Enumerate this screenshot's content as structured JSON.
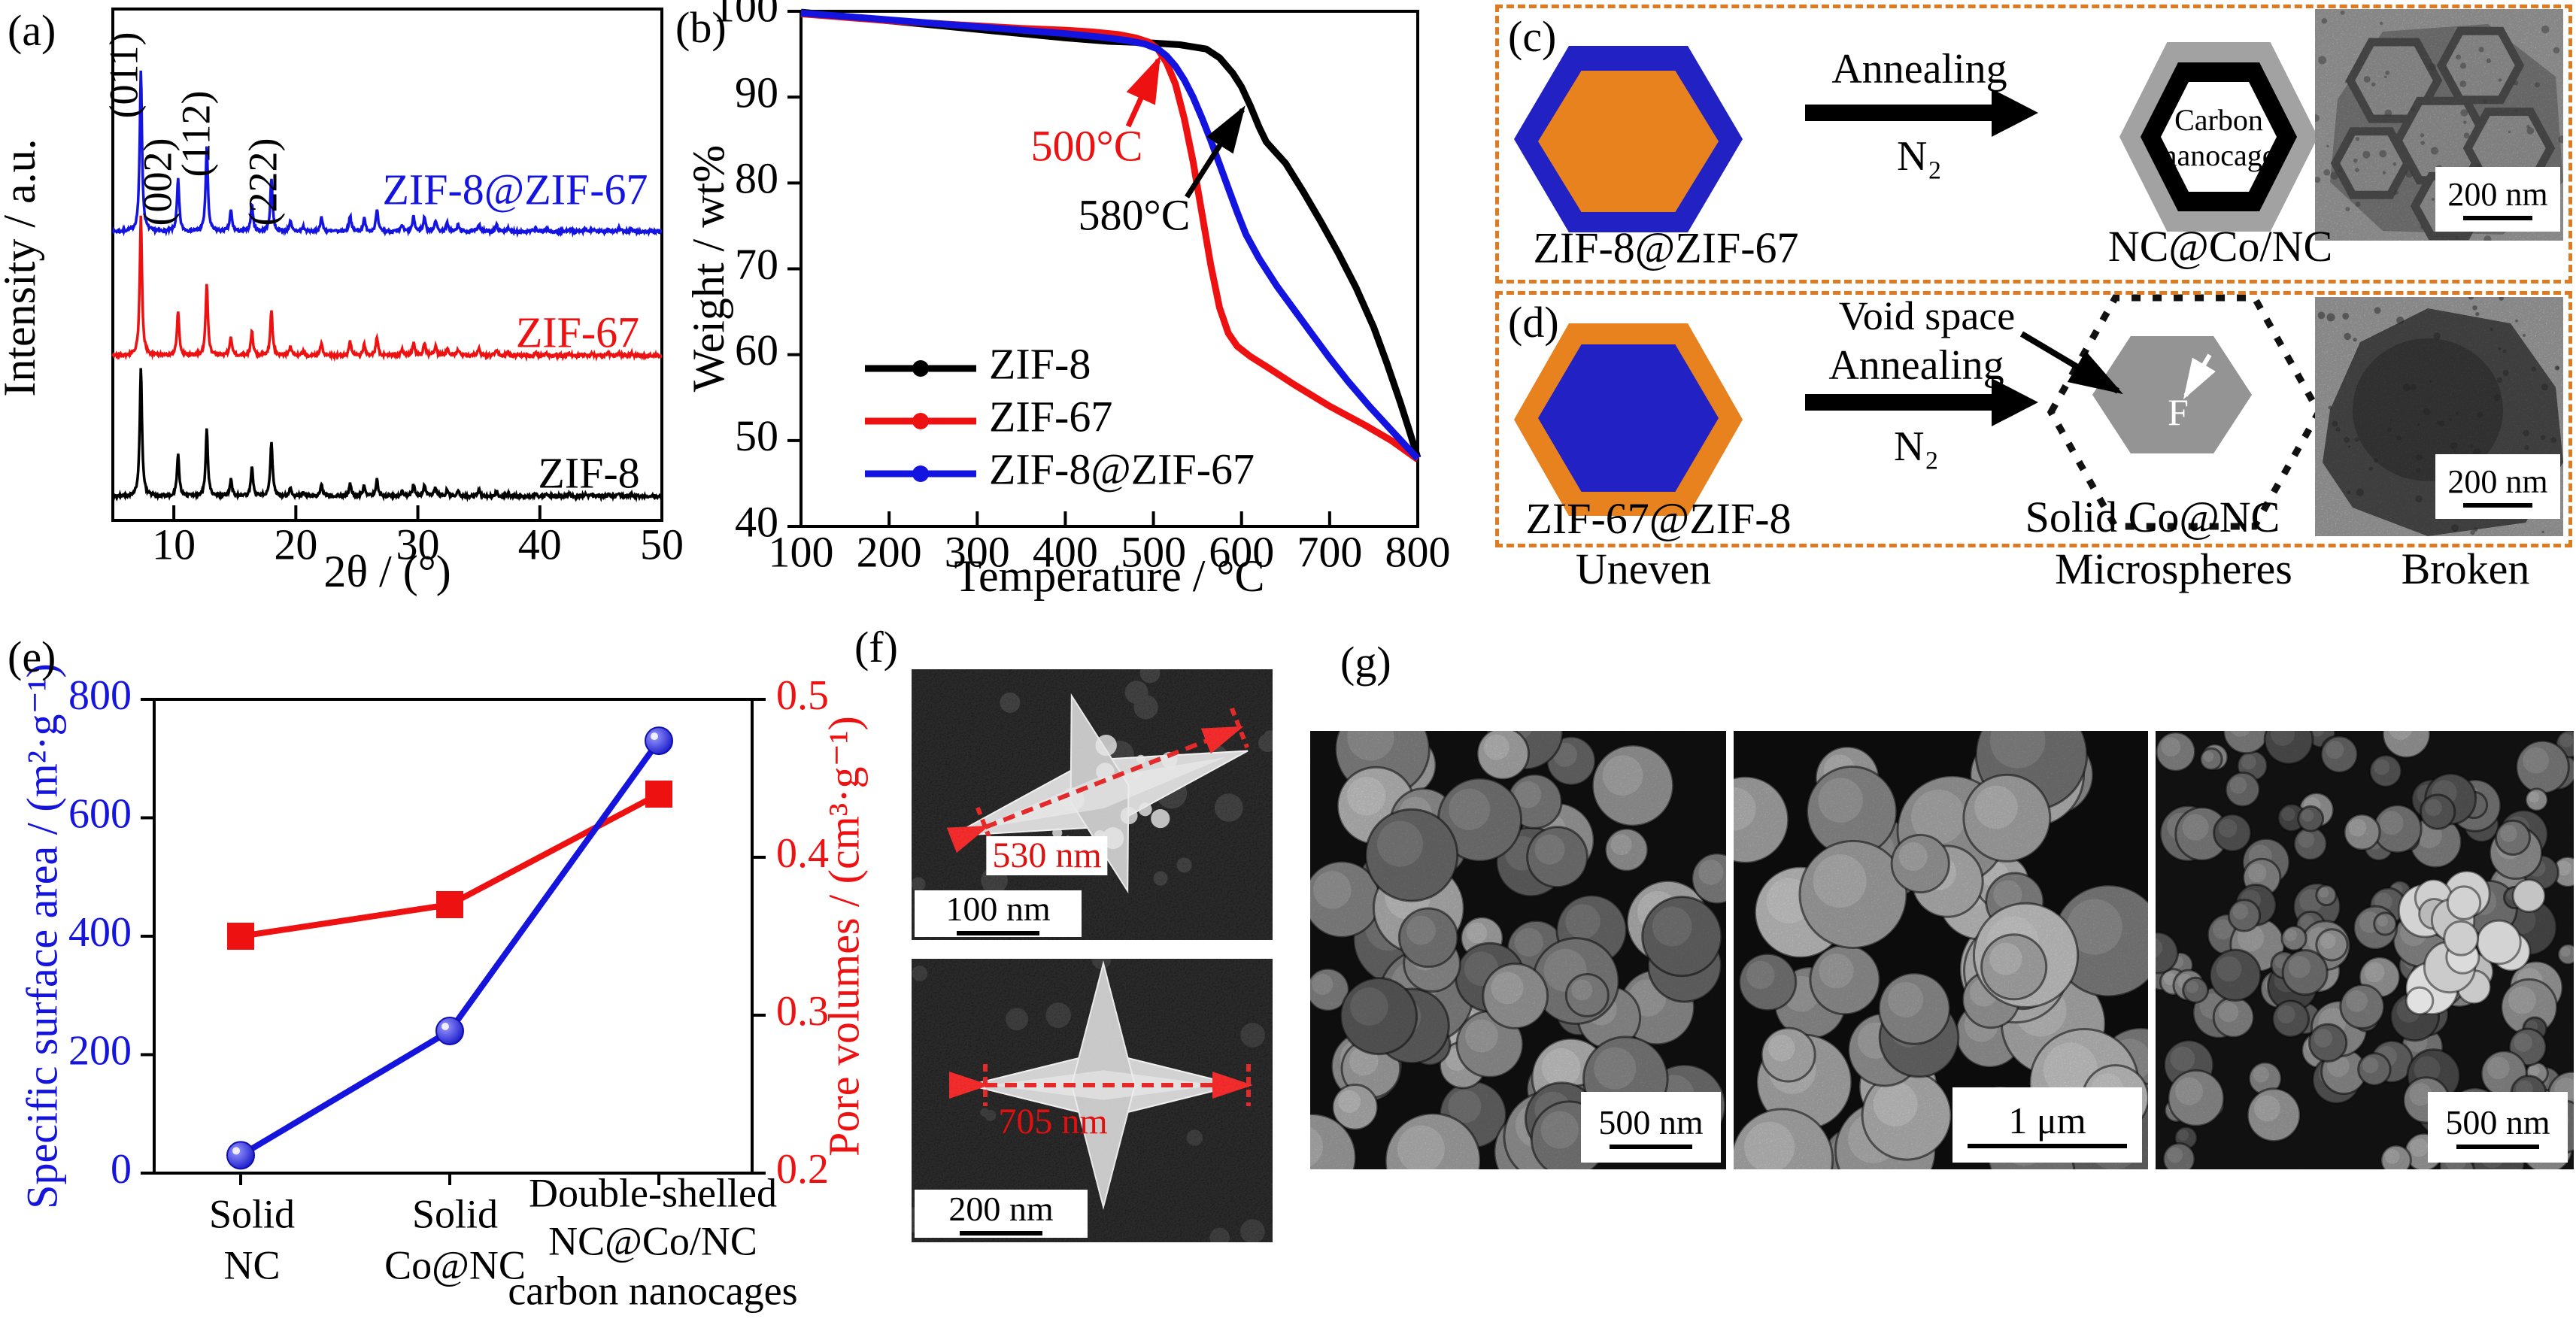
{
  "figure": {
    "background": "#ffffff"
  },
  "colors": {
    "blue": "#1414dc",
    "red": "#ee1111",
    "black": "#000000",
    "orange_fill": "#e8821e",
    "blue_fill": "#2121c4",
    "dash_border": "#dd7a22",
    "gray_shell": "#a2a2a2",
    "gray_core": "#949494"
  },
  "panels": {
    "a": {
      "label": "(a)",
      "peak_labels": [
        "(011)",
        "(002)",
        "(112)",
        "(222)"
      ]
    },
    "b": {
      "label": "(b)"
    },
    "c": {
      "label": "(c)",
      "reactant": "ZIF-8@ZIF-67",
      "process_top": "Annealing",
      "process_bottom": "N₂",
      "cage_line1": "Carbon",
      "cage_line2": "nanocage",
      "product": "NC@Co/NC",
      "scalebar": "200 nm"
    },
    "d": {
      "label": "(d)",
      "reactant": "ZIF-67@ZIF-8",
      "void_label": "Void space",
      "process_top": "Annealing",
      "process_bottom": "N₂",
      "core_letter": "F",
      "product": "Solid Co@NC",
      "scalebar": "200 nm"
    },
    "row_labels": {
      "uneven": "Uneven",
      "microspheres": "Microspheres",
      "broken": "Broken"
    },
    "e": {
      "label": "(e)"
    },
    "f": {
      "label": "(f)",
      "measure_top": "530 nm",
      "scalebar_top": "100 nm",
      "measure_bottom": "705 nm",
      "scalebar_bottom": "200 nm"
    },
    "g": {
      "label": "(g)",
      "scalebar_1": "500 nm",
      "scalebar_2": "1 μm",
      "scalebar_3": "500 nm"
    }
  },
  "chart_data": [
    {
      "id": "xrd",
      "type": "line",
      "xlabel": "2θ / (°)",
      "ylabel": "Intensity / a.u.",
      "xlim": [
        5,
        50
      ],
      "xticks": [
        10,
        20,
        30,
        40,
        50
      ],
      "grid": false,
      "legend_position": "inline-right",
      "peak_positions_2theta": [
        7.3,
        10.35,
        12.7,
        14.68,
        16.4,
        18.0,
        19.55,
        20.6,
        22.1,
        24.45,
        25.6,
        26.65,
        28.7,
        29.65,
        30.55,
        31.45,
        32.4,
        33.3,
        35.0,
        36.45,
        37.35,
        39.65,
        40.5,
        42.4,
        43.7,
        44.3,
        45.6,
        46.5,
        47.5
      ],
      "peak_rel_intensities": [
        1.0,
        0.32,
        0.52,
        0.13,
        0.17,
        0.33,
        0.06,
        0.03,
        0.09,
        0.1,
        0.08,
        0.13,
        0.04,
        0.09,
        0.09,
        0.07,
        0.05,
        0.04,
        0.05,
        0.04,
        0.02,
        0.02,
        0.015,
        0.02,
        0.015,
        0.015,
        0.015,
        0.02,
        0.015
      ],
      "peak_labels": [
        "(011)",
        "(002)",
        "(112)",
        "(222)"
      ],
      "series": [
        {
          "name": "ZIF-8@ZIF-67",
          "color": "#1414e0"
        },
        {
          "name": "ZIF-67",
          "color": "#ee1111"
        },
        {
          "name": "ZIF-8",
          "color": "#000000"
        }
      ]
    },
    {
      "id": "tga",
      "type": "line",
      "xlabel": "Temperature / °C",
      "ylabel": "Weight / wt%",
      "xlim": [
        100,
        800
      ],
      "ylim": [
        40,
        100
      ],
      "xticks": [
        100,
        200,
        300,
        400,
        500,
        600,
        700,
        800
      ],
      "yticks": [
        40,
        50,
        60,
        70,
        80,
        90,
        100
      ],
      "grid": false,
      "legend_position": "lower-left",
      "annotations": [
        {
          "text": "500°C",
          "color": "#ee1111"
        },
        {
          "text": "580°C",
          "color": "#000000"
        }
      ],
      "series": [
        {
          "name": "ZIF-8",
          "color": "#000000",
          "points": [
            [
              100,
              99.9
            ],
            [
              150,
              99.4
            ],
            [
              200,
              98.9
            ],
            [
              250,
              98.4
            ],
            [
              300,
              97.9
            ],
            [
              350,
              97.4
            ],
            [
              400,
              96.9
            ],
            [
              450,
              96.5
            ],
            [
              500,
              96.3
            ],
            [
              530,
              96.1
            ],
            [
              560,
              95.6
            ],
            [
              575,
              94.6
            ],
            [
              590,
              92.8
            ],
            [
              600,
              91.2
            ],
            [
              610,
              89.0
            ],
            [
              620,
              86.5
            ],
            [
              628,
              84.8
            ],
            [
              635,
              84.0
            ],
            [
              650,
              82.3
            ],
            [
              670,
              79.0
            ],
            [
              690,
              75.5
            ],
            [
              710,
              71.8
            ],
            [
              730,
              67.8
            ],
            [
              750,
              63.2
            ],
            [
              765,
              59.0
            ],
            [
              780,
              54.5
            ],
            [
              790,
              51.3
            ],
            [
              800,
              48.0
            ]
          ]
        },
        {
          "name": "ZIF-67",
          "color": "#ee1111",
          "points": [
            [
              100,
              99.7
            ],
            [
              150,
              99.3
            ],
            [
              200,
              98.9
            ],
            [
              250,
              98.6
            ],
            [
              300,
              98.3
            ],
            [
              350,
              98.0
            ],
            [
              400,
              97.8
            ],
            [
              430,
              97.6
            ],
            [
              460,
              97.3
            ],
            [
              480,
              96.9
            ],
            [
              495,
              96.4
            ],
            [
              505,
              95.6
            ],
            [
              515,
              94.0
            ],
            [
              525,
              91.5
            ],
            [
              535,
              87.5
            ],
            [
              545,
              82.5
            ],
            [
              555,
              76.5
            ],
            [
              565,
              70.5
            ],
            [
              575,
              65.5
            ],
            [
              585,
              62.5
            ],
            [
              595,
              61.0
            ],
            [
              610,
              59.8
            ],
            [
              630,
              58.5
            ],
            [
              660,
              56.5
            ],
            [
              700,
              54.0
            ],
            [
              740,
              51.8
            ],
            [
              770,
              50.0
            ],
            [
              800,
              47.8
            ]
          ]
        },
        {
          "name": "ZIF-8@ZIF-67",
          "color": "#1414e0",
          "points": [
            [
              100,
              99.8
            ],
            [
              150,
              99.4
            ],
            [
              200,
              99.0
            ],
            [
              250,
              98.6
            ],
            [
              300,
              98.2
            ],
            [
              350,
              97.8
            ],
            [
              400,
              97.4
            ],
            [
              440,
              97.0
            ],
            [
              470,
              96.6
            ],
            [
              490,
              96.2
            ],
            [
              505,
              95.6
            ],
            [
              515,
              94.8
            ],
            [
              525,
              93.6
            ],
            [
              535,
              92.0
            ],
            [
              545,
              90.0
            ],
            [
              555,
              87.6
            ],
            [
              565,
              85.0
            ],
            [
              575,
              82.2
            ],
            [
              585,
              79.4
            ],
            [
              595,
              76.6
            ],
            [
              605,
              74.0
            ],
            [
              620,
              71.2
            ],
            [
              640,
              68.0
            ],
            [
              660,
              65.2
            ],
            [
              680,
              62.4
            ],
            [
              700,
              59.6
            ],
            [
              720,
              57.0
            ],
            [
              745,
              54.0
            ],
            [
              770,
              51.2
            ],
            [
              790,
              49.0
            ],
            [
              800,
              47.9
            ]
          ]
        }
      ]
    },
    {
      "id": "surface-pore",
      "type": "line",
      "categories": [
        [
          "Solid",
          "NC"
        ],
        [
          "Solid",
          "Co@NC"
        ],
        [
          "Double-shelled",
          "NC@Co/NC",
          "carbon nanocages"
        ]
      ],
      "left_axis": {
        "label": "Specific surface area / (m²·g⁻¹)",
        "ticks": [
          0,
          200,
          400,
          600,
          800
        ],
        "lim": [
          0,
          800
        ],
        "color": "#1414dc"
      },
      "right_axis": {
        "label": "Pore volumes / (cm³·g⁻¹)",
        "ticks": [
          0.2,
          0.3,
          0.4,
          0.5
        ],
        "lim": [
          0.2,
          0.5
        ],
        "color": "#ee1111"
      },
      "grid": false,
      "series": [
        {
          "name": "Specific surface area",
          "axis": "left",
          "marker": "circle",
          "color": "#1414dc",
          "values": [
            30,
            240,
            730
          ]
        },
        {
          "name": "Pore volumes",
          "axis": "right",
          "marker": "square",
          "color": "#ee1111",
          "values": [
            0.35,
            0.37,
            0.44
          ]
        }
      ]
    }
  ]
}
